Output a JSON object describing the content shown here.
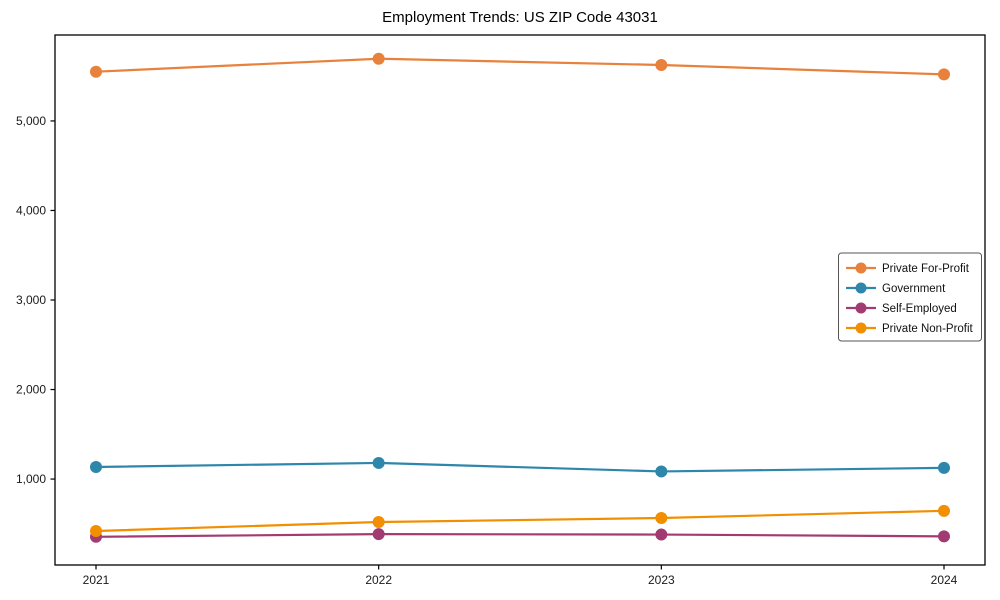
{
  "chart_data": {
    "type": "line",
    "title": "Employment Trends: US ZIP Code 43031",
    "x": [
      2021,
      2022,
      2023,
      2024
    ],
    "x_tick_labels": [
      "2021",
      "2022",
      "2023",
      "2024"
    ],
    "series": [
      {
        "name": "Private For-Profit",
        "color": "#E8813C",
        "values": [
          5550,
          5695,
          5625,
          5520
        ]
      },
      {
        "name": "Government",
        "color": "#2E86AB",
        "values": [
          1135,
          1180,
          1085,
          1125
        ]
      },
      {
        "name": "Self-Employed",
        "color": "#A23B72",
        "values": [
          355,
          385,
          380,
          360
        ]
      },
      {
        "name": "Private Non-Profit",
        "color": "#F18F01",
        "values": [
          420,
          520,
          565,
          645
        ]
      }
    ],
    "xlabel": "",
    "ylabel": "",
    "ylim": [
      40,
      5960
    ],
    "yticks": [
      1000,
      2000,
      3000,
      4000,
      5000
    ],
    "ytick_labels": [
      "1,000",
      "2,000",
      "3,000",
      "4,000",
      "5,000"
    ],
    "legend_position": "center right",
    "grid": false,
    "axis_color": "#000000",
    "background_color": "#ffffff"
  }
}
